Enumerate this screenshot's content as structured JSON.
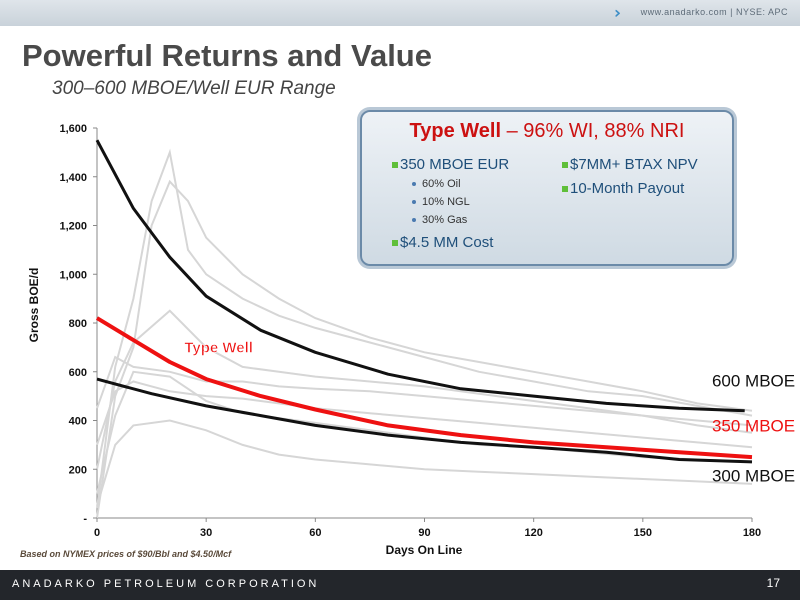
{
  "header": {
    "links": "www.anadarko.com  |  NYSE: APC"
  },
  "title": "Powerful Returns and Value",
  "subtitle": "300–600 MBOE/Well EUR Range",
  "callout": {
    "title_bold": "Type Well",
    "title_rest": " – 96% WI, 88% NRI",
    "items_left": [
      "350 MBOE EUR",
      "$4.5 MM Cost"
    ],
    "sub_items": [
      "60% Oil",
      "10% NGL",
      "30% Gas"
    ],
    "items_right": [
      "$7MM+ BTAX NPV",
      "10-Month Payout"
    ],
    "bullet_color": "#5fbf3a"
  },
  "footnote": "Based on NYMEX prices of $90/Bbl and $4.50/Mcf",
  "footer": {
    "company": "ANADARKO PETROLEUM CORPORATION",
    "page": "17"
  },
  "chart_data": {
    "type": "line",
    "xlabel": "Days On Line",
    "ylabel": "Gross BOE/d",
    "xlim": [
      0,
      180
    ],
    "ylim": [
      0,
      1600
    ],
    "xticks": [
      "0",
      "30",
      "60",
      "90",
      "120",
      "150",
      "180"
    ],
    "yticks": [
      "-",
      "200",
      "400",
      "600",
      "800",
      "1,000",
      "1,200",
      "1,400",
      "1,600"
    ],
    "grid": false,
    "series": [
      {
        "name": "600 MBOE",
        "color": "#111111",
        "x": [
          0,
          10,
          20,
          30,
          45,
          60,
          80,
          100,
          120,
          140,
          160,
          178
        ],
        "y": [
          1550,
          1270,
          1070,
          910,
          770,
          680,
          590,
          530,
          500,
          470,
          450,
          440
        ]
      },
      {
        "name": "350 MBOE",
        "color": "#ee1111",
        "x": [
          0,
          10,
          20,
          30,
          45,
          60,
          80,
          100,
          120,
          140,
          160,
          180
        ],
        "y": [
          820,
          730,
          640,
          570,
          500,
          445,
          380,
          340,
          310,
          290,
          270,
          250
        ]
      },
      {
        "name": "300 MBOE",
        "color": "#111111",
        "x": [
          0,
          15,
          30,
          45,
          60,
          80,
          100,
          120,
          140,
          160,
          180
        ],
        "y": [
          570,
          510,
          460,
          420,
          380,
          340,
          310,
          290,
          270,
          240,
          230
        ]
      }
    ],
    "background_wells": [
      {
        "x": [
          0,
          5,
          10,
          15,
          20,
          25,
          30,
          40,
          50,
          60,
          75,
          90,
          105,
          120,
          135,
          150,
          165,
          180
        ],
        "y": [
          40,
          620,
          900,
          1300,
          1500,
          1100,
          1000,
          900,
          830,
          780,
          720,
          660,
          600,
          560,
          520,
          500,
          460,
          420
        ]
      },
      {
        "x": [
          0,
          5,
          10,
          15,
          20,
          25,
          30,
          40,
          50,
          60,
          75,
          90,
          105,
          120,
          135,
          150,
          165,
          180
        ],
        "y": [
          0,
          500,
          700,
          1200,
          1380,
          1300,
          1150,
          1000,
          900,
          820,
          740,
          680,
          640,
          600,
          560,
          520,
          470,
          440
        ]
      },
      {
        "x": [
          0,
          5,
          10,
          20,
          30,
          40,
          50,
          60,
          75,
          90,
          105,
          120,
          135,
          150,
          165,
          180
        ],
        "y": [
          450,
          660,
          620,
          600,
          560,
          560,
          540,
          530,
          520,
          500,
          480,
          460,
          440,
          420,
          400,
          380
        ]
      },
      {
        "x": [
          0,
          5,
          10,
          20,
          30,
          40,
          50,
          60,
          75,
          90,
          105,
          120,
          135,
          150,
          165,
          180
        ],
        "y": [
          300,
          520,
          560,
          520,
          500,
          490,
          470,
          450,
          430,
          410,
          390,
          370,
          350,
          330,
          310,
          290
        ]
      },
      {
        "x": [
          0,
          5,
          10,
          20,
          30,
          40,
          50,
          60,
          75,
          90,
          105,
          120,
          135,
          150,
          165,
          180
        ],
        "y": [
          100,
          420,
          600,
          580,
          480,
          430,
          410,
          390,
          360,
          330,
          300,
          290,
          270,
          250,
          240,
          230
        ]
      },
      {
        "x": [
          0,
          5,
          10,
          20,
          30,
          40,
          50,
          60,
          75,
          90,
          105,
          120,
          135,
          150,
          165,
          180
        ],
        "y": [
          200,
          560,
          720,
          850,
          700,
          620,
          600,
          580,
          560,
          540,
          510,
          480,
          450,
          420,
          380,
          350
        ]
      },
      {
        "x": [
          0,
          5,
          10,
          20,
          30,
          40,
          50,
          60,
          75,
          90,
          105,
          120,
          135,
          150,
          165,
          180
        ],
        "y": [
          50,
          300,
          380,
          400,
          360,
          300,
          260,
          240,
          220,
          200,
          190,
          180,
          170,
          160,
          150,
          140
        ]
      }
    ],
    "annotations": [
      {
        "text": "Type Well",
        "x": 24,
        "y": 680,
        "color": "#ee1111"
      },
      {
        "text": "600 MBOE",
        "x": 169,
        "y": 540,
        "color": "#111111"
      },
      {
        "text": "350 MBOE",
        "x": 169,
        "y": 355,
        "color": "#ee1111"
      },
      {
        "text": "300 MBOE",
        "x": 169,
        "y": 150,
        "color": "#111111"
      }
    ]
  }
}
